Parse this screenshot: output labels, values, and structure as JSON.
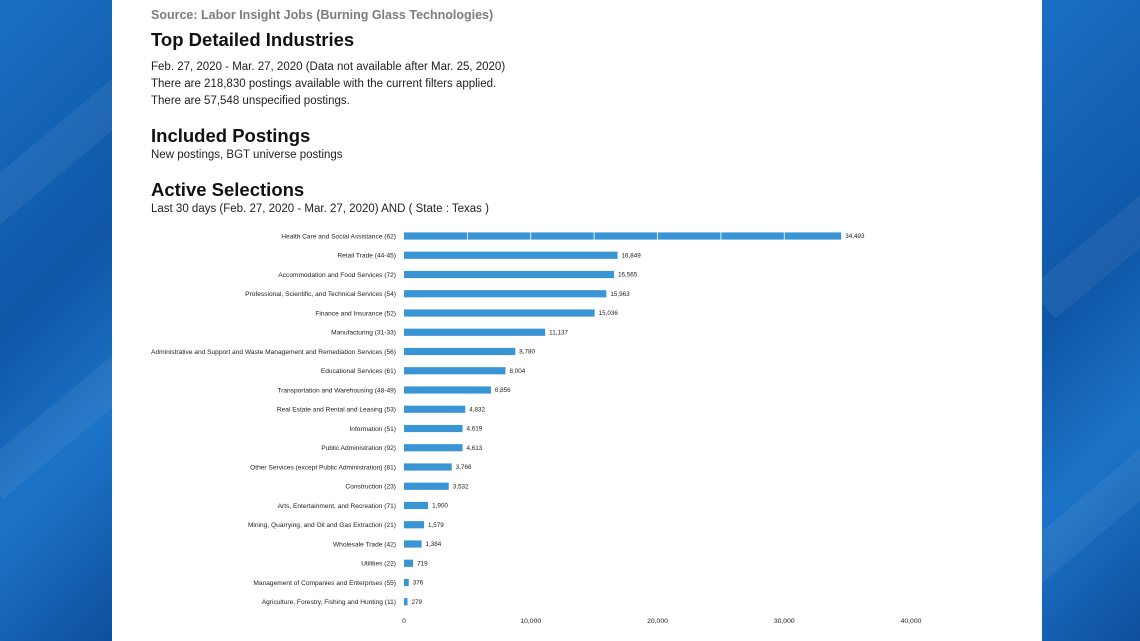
{
  "source": "Source: Labor Insight Jobs (Burning Glass Technologies)",
  "section1": {
    "title": "Top Detailed Industries",
    "lines": [
      "Feb. 27, 2020 - Mar. 27, 2020 (Data not available after Mar. 25, 2020)",
      "There are 218,830 postings available with the current filters applied.",
      "There are 57,548 unspecified postings."
    ]
  },
  "section2": {
    "title": "Included Postings",
    "line": "New postings, BGT universe postings"
  },
  "section3": {
    "title": "Active Selections",
    "line": "Last 30 days (Feb. 27, 2020 - Mar. 27, 2020) AND ( State : Texas )"
  },
  "chart_data": {
    "type": "bar",
    "orientation": "horizontal",
    "bar_color": "#3a95d4",
    "xlim": [
      0,
      40000
    ],
    "x_ticks": [
      {
        "value": 0,
        "label": "0"
      },
      {
        "value": 10000,
        "label": "10,000"
      },
      {
        "value": 20000,
        "label": "20,000"
      },
      {
        "value": 30000,
        "label": "30,000"
      },
      {
        "value": 40000,
        "label": "40,000"
      }
    ],
    "categories": [
      "Health Care and Social Assistance (62)",
      "Retail Trade (44-45)",
      "Accommodation and Food Services (72)",
      "Professional, Scientific, and Technical Services (54)",
      "Finance and Insurance (52)",
      "Manufacturing (31-33)",
      "Administrative and Support and Waste Management and Remediation Services (56)",
      "Educational Services (61)",
      "Transportation and Warehousing (48-49)",
      "Real Estate and Rental and Leasing (53)",
      "Information (51)",
      "Public Administration (92)",
      "Other Services (except Public Administration) (81)",
      "Construction (23)",
      "Arts, Entertainment, and Recreation (71)",
      "Mining, Quarrying, and Oil and Gas Extraction (21)",
      "Wholesale Trade (42)",
      "Utilities (22)",
      "Management of Companies and Enterprises (55)",
      "Agriculture, Forestry, Fishing and Hunting (11)"
    ],
    "values": [
      34493,
      16849,
      16565,
      15963,
      15036,
      11137,
      8780,
      8004,
      6856,
      4832,
      4619,
      4613,
      3766,
      3532,
      1900,
      1579,
      1384,
      719,
      376,
      279
    ],
    "value_labels": [
      "34,493",
      "16,849",
      "16,565",
      "15,963",
      "15,036",
      "11,137",
      "8,780",
      "8,004",
      "6,856",
      "4,832",
      "4,619",
      "4,613",
      "3,766",
      "3,532",
      "1,900",
      "1,579",
      "1,384",
      "719",
      "376",
      "279"
    ]
  }
}
